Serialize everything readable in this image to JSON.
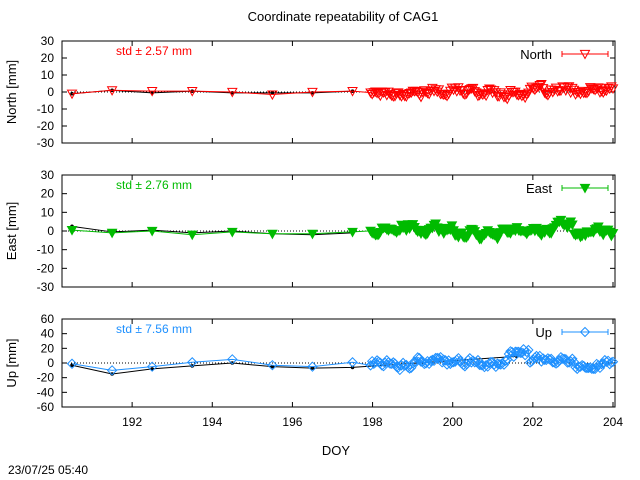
{
  "title": "Coordinate repeatability of CAG1",
  "timestamp": "23/07/25 05:40",
  "xlabel": "DOY",
  "x_ticks": [
    192,
    194,
    196,
    198,
    200,
    202,
    204
  ],
  "x_range": [
    190.25,
    204.05
  ],
  "dotted_zero_line": true,
  "chart_data": [
    {
      "type": "scatter",
      "name": "North",
      "ylabel": "North [mm]",
      "std_label": "std ± 2.57 mm",
      "legend_label": "North",
      "legend_position": "top-right",
      "color": "#ff0000",
      "marker": "triangle-down-open",
      "ylim": [
        -30,
        30
      ],
      "y_ticks": [
        30,
        20,
        10,
        0,
        -10,
        -20,
        -30
      ],
      "sparse_x": [
        190.5,
        191.5,
        192.5,
        193.5,
        194.5,
        195.5,
        196.5,
        197.5
      ],
      "sparse_y": [
        -1,
        1,
        0.5,
        0.5,
        0,
        -1.5,
        0,
        0.5
      ],
      "black_y": [
        -1,
        1,
        -0.5,
        0.5,
        -0.5,
        -0.5,
        -0.5,
        0.5
      ],
      "dense_x_start": 197.95,
      "dense_x_end": 204.0,
      "dense_count": 150,
      "dense_amp": 3.0,
      "dense_bias": 0.0
    },
    {
      "type": "scatter",
      "name": "East",
      "ylabel": "East [mm]",
      "std_label": "std ± 2.76 mm",
      "legend_label": "East",
      "legend_position": "top-right",
      "color": "#00bb00",
      "marker": "triangle-down-filled",
      "ylim": [
        -30,
        30
      ],
      "y_ticks": [
        30,
        20,
        10,
        0,
        -10,
        -20,
        -30
      ],
      "sparse_x": [
        190.5,
        191.5,
        192.5,
        193.5,
        194.5,
        195.5,
        196.5,
        197.5
      ],
      "sparse_y": [
        0.5,
        -1,
        0,
        -2,
        -0.5,
        -1.5,
        -1.5,
        -0.5
      ],
      "black_y": [
        2.5,
        -0.5,
        0.5,
        -1,
        0,
        -1.5,
        -2,
        -1
      ],
      "dense_x_start": 197.95,
      "dense_x_end": 204.0,
      "dense_count": 150,
      "dense_amp": 3.2,
      "dense_bias": 0.0
    },
    {
      "type": "scatter",
      "name": "Up",
      "ylabel": "Up [mm]",
      "std_label": "std ± 7.56 mm",
      "legend_label": "Up",
      "legend_position": "top-right",
      "color": "#1e90ff",
      "marker": "diamond-open",
      "ylim": [
        -60,
        60
      ],
      "y_ticks": [
        60,
        40,
        20,
        0,
        -20,
        -40,
        -60
      ],
      "sparse_x": [
        190.5,
        191.5,
        192.5,
        193.5,
        194.5,
        195.5,
        196.5,
        197.5
      ],
      "sparse_y": [
        -1,
        -10,
        -5,
        1,
        5,
        -3,
        -5,
        1
      ],
      "black_y": [
        -3,
        -15,
        -8,
        -4,
        0,
        -5,
        -7,
        -6
      ],
      "black_extra_x": [
        201.6
      ],
      "black_extra_y": [
        9
      ],
      "dense_x_start": 197.95,
      "dense_x_end": 204.0,
      "dense_count": 150,
      "dense_amp": 7.5,
      "dense_bias": 0.0
    }
  ]
}
